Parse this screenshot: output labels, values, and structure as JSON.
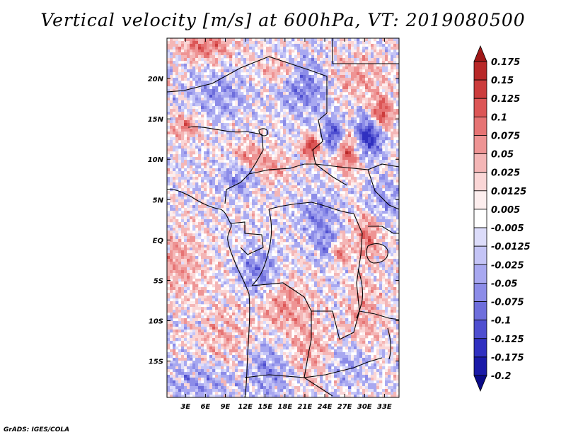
{
  "chart_data": {
    "type": "heatmap",
    "title": "Vertical velocity [m/s] at 600hPa, VT: 2019080500",
    "variable": "Vertical velocity",
    "units": "m/s",
    "level": "600hPa",
    "valid_time": "2019080500",
    "x_ticks": [
      {
        "value": 3,
        "label": "3E"
      },
      {
        "value": 6,
        "label": "6E"
      },
      {
        "value": 9,
        "label": "9E"
      },
      {
        "value": 12,
        "label": "12E"
      },
      {
        "value": 15,
        "label": "15E"
      },
      {
        "value": 18,
        "label": "18E"
      },
      {
        "value": 21,
        "label": "21E"
      },
      {
        "value": 24,
        "label": "24E"
      },
      {
        "value": 27,
        "label": "27E"
      },
      {
        "value": 30,
        "label": "30E"
      },
      {
        "value": 33,
        "label": "33E"
      }
    ],
    "y_ticks": [
      {
        "value": 20,
        "label": "20N"
      },
      {
        "value": 15,
        "label": "15N"
      },
      {
        "value": 10,
        "label": "10N"
      },
      {
        "value": 5,
        "label": "5N"
      },
      {
        "value": 0,
        "label": "EQ"
      },
      {
        "value": -5,
        "label": "5S"
      },
      {
        "value": -10,
        "label": "10S"
      },
      {
        "value": -15,
        "label": "15S"
      }
    ],
    "xlim": [
      0.2,
      35.2
    ],
    "ylim": [
      -19.5,
      25
    ],
    "colorbar": {
      "labels": [
        "0.175",
        "0.15",
        "0.125",
        "0.1",
        "0.075",
        "0.05",
        "0.025",
        "0.0125",
        "0.005",
        "-0.005",
        "-0.0125",
        "-0.025",
        "-0.05",
        "-0.075",
        "-0.1",
        "-0.125",
        "-0.175",
        "-0.2"
      ],
      "colors": [
        "#a01818",
        "#b82828",
        "#cc3c3c",
        "#dc5656",
        "#e67474",
        "#ee9494",
        "#f4b6b6",
        "#fad6d6",
        "#fdeeee",
        "#ffffff",
        "#dcdcfa",
        "#c4c4f6",
        "#a8a8f0",
        "#8c8ce8",
        "#6e6edc",
        "#4e4ed0",
        "#3030c0",
        "#1a1aa8",
        "#0a0a88"
      ]
    },
    "features": [
      {
        "value": 0.12,
        "lon": 27.5,
        "lat": 11.2,
        "sx": 1.3,
        "sy": 2.0
      },
      {
        "value": -0.15,
        "lon": 30.5,
        "lat": 13.0,
        "sx": 1.6,
        "sy": 1.8
      },
      {
        "value": 0.13,
        "lon": 32.5,
        "lat": 15.5,
        "sx": 1.2,
        "sy": 1.5
      },
      {
        "value": -0.13,
        "lon": 25.5,
        "lat": 13.0,
        "sx": 1.2,
        "sy": 1.4
      },
      {
        "value": 0.14,
        "lon": 22.0,
        "lat": 11.5,
        "sx": 1.0,
        "sy": 1.0
      },
      {
        "value": 0.08,
        "lon": 3.0,
        "lat": 14.0,
        "sx": 1.5,
        "sy": 1.0
      },
      {
        "value": -0.06,
        "lon": 11.0,
        "lat": 7.5,
        "sx": 2.0,
        "sy": 1.4
      },
      {
        "value": 0.07,
        "lon": 12.5,
        "lat": 10.5,
        "sx": 1.6,
        "sy": 1.0
      },
      {
        "value": 0.06,
        "lon": 16.0,
        "lat": 9.0,
        "sx": 1.8,
        "sy": 1.2
      },
      {
        "value": 0.09,
        "lon": 6.0,
        "lat": 24.0,
        "sx": 3.0,
        "sy": 1.2
      },
      {
        "value": 0.06,
        "lon": 17.0,
        "lat": 21.0,
        "sx": 2.0,
        "sy": 1.0
      },
      {
        "value": -0.05,
        "lon": 8.0,
        "lat": 18.0,
        "sx": 3.0,
        "sy": 2.0
      },
      {
        "value": -0.07,
        "lon": 21.0,
        "lat": 19.0,
        "sx": 2.5,
        "sy": 2.5
      },
      {
        "value": 0.05,
        "lon": 29.0,
        "lat": 20.0,
        "sx": 3.0,
        "sy": 2.0
      },
      {
        "value": -0.06,
        "lon": 23.0,
        "lat": 3.0,
        "sx": 2.0,
        "sy": 2.0
      },
      {
        "value": 0.1,
        "lon": 26.0,
        "lat": -1.5,
        "sx": 1.0,
        "sy": 1.2
      },
      {
        "value": -0.08,
        "lon": 24.5,
        "lat": -1.0,
        "sx": 1.2,
        "sy": 1.5
      },
      {
        "value": 0.08,
        "lon": 30.5,
        "lat": 0.5,
        "sx": 1.5,
        "sy": 2.0
      },
      {
        "value": 0.07,
        "lon": 18.0,
        "lat": -8.0,
        "sx": 2.5,
        "sy": 2.0
      },
      {
        "value": -0.07,
        "lon": 14.0,
        "lat": -4.0,
        "sx": 2.0,
        "sy": 2.0
      },
      {
        "value": 0.06,
        "lon": 22.0,
        "lat": -14.0,
        "sx": 3.0,
        "sy": 2.5
      },
      {
        "value": -0.06,
        "lon": 16.0,
        "lat": -16.0,
        "sx": 2.5,
        "sy": 2.5
      },
      {
        "value": 0.05,
        "lon": 30.0,
        "lat": -9.0,
        "sx": 2.0,
        "sy": 3.0
      },
      {
        "value": -0.05,
        "lon": 27.0,
        "lat": -15.0,
        "sx": 2.5,
        "sy": 2.0
      },
      {
        "value": 0.05,
        "lon": 2.0,
        "lat": -3.0,
        "sx": 3.0,
        "sy": 3.0
      },
      {
        "value": -0.045,
        "lon": 5.0,
        "lat": -17.5,
        "sx": 4.0,
        "sy": 2.0
      },
      {
        "value": 0.04,
        "lon": 9.0,
        "lat": -12.0,
        "sx": 3.0,
        "sy": 3.0
      },
      {
        "value": -0.05,
        "lon": 33.0,
        "lat": 5.0,
        "sx": 2.0,
        "sy": 2.0
      }
    ]
  },
  "credit": "GrADS: IGES/COLA"
}
